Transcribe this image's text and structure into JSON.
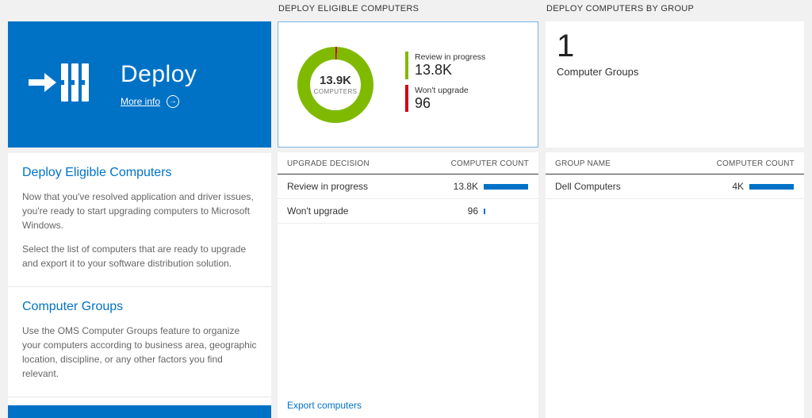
{
  "colors": {
    "accent_blue": "#0072c6",
    "chart_green": "#7fba00",
    "chart_red": "#d0021b",
    "bar_blue": "#0072c6",
    "page_bg": "#f1f1f1"
  },
  "icons": {
    "arrow_right": "→"
  },
  "left_panel": {
    "tile": {
      "title": "Deploy",
      "more_info_label": "More info"
    },
    "sections": [
      {
        "heading": "Deploy Eligible Computers",
        "paragraphs": [
          "Now that you've resolved application and driver issues, you're ready to start upgrading computers to Microsoft Windows.",
          "Select the list of computers that are ready to upgrade and export it to your software distribution solution."
        ]
      },
      {
        "heading": "Computer Groups",
        "paragraphs": [
          "Use the OMS Computer Groups feature to organize your computers according to business area, geographic location, discipline, or any other factors you find relevant."
        ]
      }
    ]
  },
  "middle_panel": {
    "header": "DEPLOY ELIGIBLE COMPUTERS",
    "donut": {
      "center_value": "13.9K",
      "center_label": "COMPUTERS",
      "legend": [
        {
          "label": "Review in progress",
          "value": "13.8K",
          "color": "#7fba00"
        },
        {
          "label": "Won't upgrade",
          "value": "96",
          "color": "#d0021b"
        }
      ]
    },
    "table": {
      "columns": [
        "UPGRADE DECISION",
        "COMPUTER COUNT"
      ],
      "rows": [
        {
          "label": "Review in progress",
          "value": "13.8K",
          "bar_pct": 100
        },
        {
          "label": "Won't upgrade",
          "value": "96",
          "bar_pct": 1
        }
      ]
    },
    "footer_link": "Export computers"
  },
  "right_panel": {
    "header": "DEPLOY COMPUTERS BY GROUP",
    "summary": {
      "value": "1",
      "label": "Computer Groups"
    },
    "table": {
      "columns": [
        "GROUP NAME",
        "COMPUTER COUNT"
      ],
      "rows": [
        {
          "label": "Dell Computers",
          "value": "4K",
          "bar_pct": 100
        }
      ]
    }
  },
  "chart_data": {
    "type": "pie",
    "title": "Deploy Eligible Computers",
    "labels": [
      "Review in progress",
      "Won't upgrade"
    ],
    "values": [
      13800,
      96
    ],
    "colors": [
      "#7fba00",
      "#d0021b"
    ],
    "center_value": "13.9K",
    "center_label": "COMPUTERS",
    "legend_position": "right"
  }
}
